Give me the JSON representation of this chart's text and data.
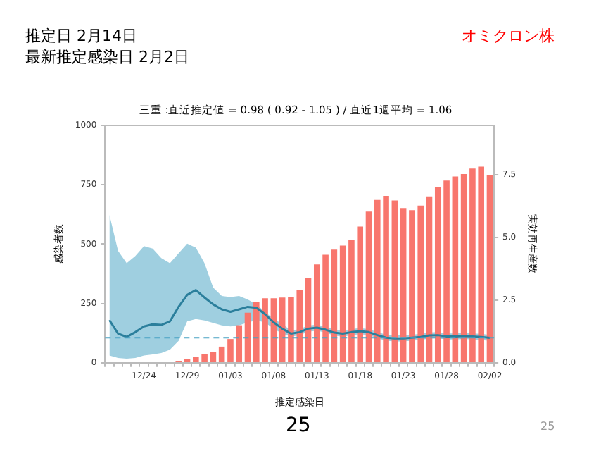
{
  "chart_data": {
    "type": "bar",
    "title": "三重 :直近推定値 = 0.98 ( 0.92 - 1.05 ) / 直近1週平均 = 1.06",
    "xlabel": "推定感染日",
    "ylabel": "感染者数",
    "y2label": "実効再生産数",
    "annotations": [
      "推定日  2月14日",
      "最新推定感染日  2月2日",
      "オミクロン株",
      "25",
      "25"
    ],
    "categories": [
      null,
      null,
      null,
      null,
      "12/24",
      null,
      null,
      null,
      null,
      "12/29",
      null,
      null,
      null,
      null,
      "01/03",
      null,
      null,
      null,
      null,
      "01/08",
      null,
      null,
      null,
      null,
      "01/13",
      null,
      null,
      null,
      null,
      "01/18",
      null,
      null,
      null,
      null,
      "01/23",
      null,
      null,
      null,
      null,
      "01/28",
      null,
      null,
      null,
      null,
      "02/02"
    ],
    "series": [
      {
        "color": "#f8766d",
        "values": [
          null,
          null,
          null,
          null,
          null,
          null,
          null,
          null,
          8,
          14,
          25,
          35,
          47,
          68,
          100,
          158,
          211,
          256,
          272,
          272,
          275,
          277,
          305,
          357,
          414,
          455,
          477,
          494,
          518,
          574,
          637,
          686,
          703,
          684,
          652,
          643,
          662,
          701,
          742,
          768,
          785,
          795,
          818,
          826,
          789
        ]
      },
      {
        "type": "line",
        "axis": "y2",
        "color": "#2b7f9c",
        "values": [
          1.7,
          1.16,
          1.03,
          1.22,
          1.45,
          1.53,
          1.51,
          1.65,
          2.23,
          2.71,
          2.9,
          2.6,
          2.33,
          2.13,
          2.03,
          2.13,
          2.23,
          2.19,
          1.94,
          1.61,
          1.36,
          1.16,
          1.22,
          1.36,
          1.4,
          1.32,
          1.2,
          1.16,
          1.22,
          1.26,
          1.22,
          1.1,
          1.0,
          0.97,
          0.97,
          1.0,
          1.03,
          1.09,
          1.1,
          1.05,
          1.05,
          1.07,
          1.05,
          1.03,
          0.99
        ],
        "upper": [
          5.9,
          4.46,
          3.97,
          4.26,
          4.65,
          4.55,
          4.17,
          3.97,
          4.36,
          4.75,
          4.59,
          3.97,
          3.0,
          2.66,
          2.62,
          2.66,
          2.52,
          2.33,
          2.03,
          1.74,
          1.55,
          1.28,
          1.34,
          1.48,
          1.52,
          1.44,
          1.32,
          1.28,
          1.34,
          1.38,
          1.34,
          1.22,
          1.12,
          1.09,
          1.09,
          1.12,
          1.15,
          1.21,
          1.22,
          1.17,
          1.17,
          1.19,
          1.17,
          1.15,
          1.11
        ],
        "lower": [
          0.29,
          0.19,
          0.16,
          0.19,
          0.29,
          0.33,
          0.39,
          0.52,
          0.87,
          1.65,
          1.74,
          1.69,
          1.59,
          1.49,
          1.45,
          1.49,
          1.61,
          1.69,
          1.61,
          1.36,
          1.16,
          1.04,
          1.1,
          1.24,
          1.28,
          1.2,
          1.08,
          1.04,
          1.1,
          1.14,
          1.1,
          0.98,
          0.88,
          0.85,
          0.85,
          0.88,
          0.91,
          0.97,
          0.98,
          0.93,
          0.93,
          0.95,
          0.93,
          0.91,
          0.87
        ]
      }
    ],
    "ylim": [
      0,
      1000
    ],
    "yticks": [
      0,
      250,
      500,
      750,
      1000
    ],
    "y2lim": [
      0,
      9.46
    ],
    "y2ticks": [
      {
        "value": 0,
        "label": "0.0"
      },
      {
        "value": 2.5,
        "label": "2.5"
      },
      {
        "value": 5,
        "label": "5.0"
      },
      {
        "value": 7.5,
        "label": "7.5"
      }
    ],
    "ref_lines": [
      {
        "axis": "y2",
        "value": 1,
        "color": "#4aa3c4",
        "line_style": "dashed"
      }
    ],
    "grid": false,
    "legend": false
  }
}
